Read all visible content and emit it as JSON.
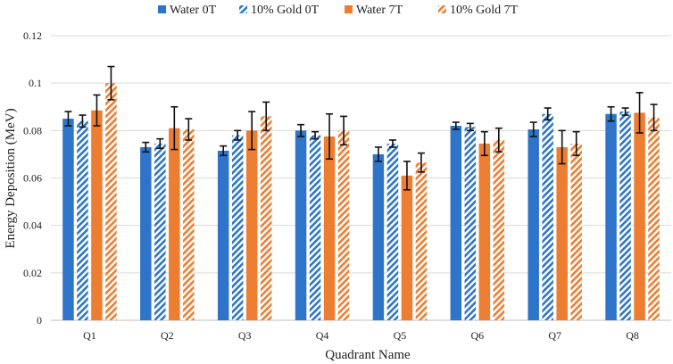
{
  "colors": {
    "water": "#2E75C9",
    "gold_hatch": "#2E75C9",
    "water7": "#ED7D31",
    "gold7_hatch": "#ED7D31",
    "grid": "#d9d9d9",
    "error": "#111111"
  },
  "chart_data": {
    "type": "bar",
    "title": "",
    "xlabel": "Quadrant Name",
    "ylabel": "Energy Deposition (MeV)",
    "ylim": [
      0,
      0.12
    ],
    "yticks": [
      "0",
      "0.02",
      "0.04",
      "0.06",
      "0.08",
      "0.1",
      "0.12"
    ],
    "categories": [
      "Q1",
      "Q2",
      "Q3",
      "Q4",
      "Q5",
      "Q6",
      "Q7",
      "Q8"
    ],
    "legend_position": "top",
    "series": [
      {
        "name": "Water 0T",
        "pattern": "solid",
        "color": "#2E75C9",
        "values": [
          0.085,
          0.073,
          0.0715,
          0.08,
          0.07,
          0.082,
          0.0805,
          0.087
        ],
        "errors": [
          0.003,
          0.002,
          0.002,
          0.0025,
          0.003,
          0.0015,
          0.003,
          0.003
        ]
      },
      {
        "name": "10% Gold 0T",
        "pattern": "hatch",
        "color": "#2E75C9",
        "values": [
          0.084,
          0.0745,
          0.078,
          0.078,
          0.0745,
          0.0815,
          0.087,
          0.088
        ],
        "errors": [
          0.0025,
          0.002,
          0.002,
          0.0015,
          0.0015,
          0.0015,
          0.0025,
          0.0015
        ]
      },
      {
        "name": "Water 7T",
        "pattern": "solid",
        "color": "#ED7D31",
        "values": [
          0.0885,
          0.081,
          0.08,
          0.0775,
          0.061,
          0.0745,
          0.073,
          0.0875
        ],
        "errors": [
          0.0065,
          0.009,
          0.008,
          0.0095,
          0.006,
          0.005,
          0.007,
          0.0085
        ]
      },
      {
        "name": "10% Gold 7T",
        "pattern": "hatch",
        "color": "#ED7D31",
        "values": [
          0.1,
          0.0805,
          0.086,
          0.08,
          0.0665,
          0.076,
          0.0745,
          0.0855
        ],
        "errors": [
          0.007,
          0.0045,
          0.006,
          0.006,
          0.004,
          0.005,
          0.005,
          0.0055
        ]
      }
    ]
  }
}
